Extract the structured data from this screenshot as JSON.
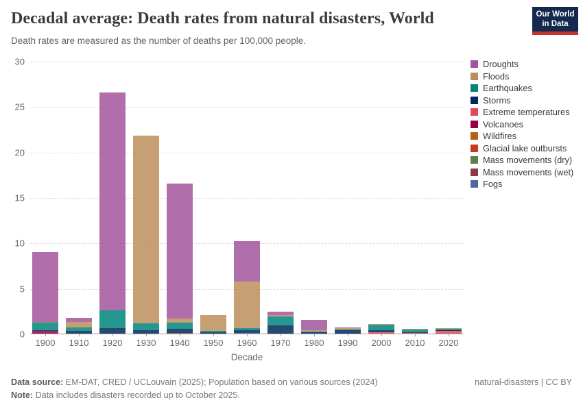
{
  "header": {
    "title": "Decadal average: Death rates from natural disasters, World",
    "subtitle": "Death rates are measured as the number of deaths per 100,000 people.",
    "logo": {
      "line1": "Our World",
      "line2": "in Data",
      "bg_color": "#15294f",
      "accent_color": "#c2362e"
    }
  },
  "chart_data": {
    "type": "bar",
    "stacked": true,
    "title": "Decadal average: Death rates from natural disasters, World",
    "xlabel": "Decade",
    "ylabel": "",
    "ylim": [
      0,
      30
    ],
    "yticks": [
      0,
      5,
      10,
      15,
      20,
      25,
      30
    ],
    "grid": "dashed-horizontal",
    "legend_position": "right",
    "bar_opacity": 0.85,
    "categories": [
      "1900",
      "1910",
      "1920",
      "1930",
      "1940",
      "1950",
      "1960",
      "1970",
      "1980",
      "1990",
      "2000",
      "2010",
      "2020"
    ],
    "series": [
      {
        "name": "Droughts",
        "color": "#a2559c",
        "values": [
          7.7,
          0.4,
          23.95,
          0.0,
          14.8,
          0.0,
          4.45,
          0.35,
          1.18,
          0.06,
          0.0,
          0.0,
          0.0
        ]
      },
      {
        "name": "Floods",
        "color": "#bc8e5a",
        "values": [
          0.05,
          0.62,
          0.0,
          20.65,
          0.45,
          1.8,
          5.15,
          0.18,
          0.1,
          0.15,
          0.06,
          0.05,
          0.06
        ]
      },
      {
        "name": "Earthquakes",
        "color": "#00847e",
        "values": [
          0.85,
          0.37,
          1.95,
          0.75,
          0.7,
          0.12,
          0.22,
          1.0,
          0.1,
          0.12,
          0.62,
          0.33,
          0.1
        ]
      },
      {
        "name": "Storms",
        "color": "#00295b",
        "values": [
          0.1,
          0.33,
          0.6,
          0.4,
          0.45,
          0.15,
          0.28,
          0.88,
          0.15,
          0.35,
          0.22,
          0.04,
          0.03
        ]
      },
      {
        "name": "Extreme temperatures",
        "color": "#e0485c",
        "values": [
          0.0,
          0.0,
          0.0,
          0.0,
          0.0,
          0.0,
          0.0,
          0.0,
          0.0,
          0.0,
          0.17,
          0.08,
          0.38
        ]
      },
      {
        "name": "Volcanoes",
        "color": "#970046",
        "values": [
          0.3,
          0.0,
          0.0,
          0.0,
          0.0,
          0.0,
          0.0,
          0.0,
          0.0,
          0.0,
          0.0,
          0.0,
          0.0
        ]
      },
      {
        "name": "Wildfires",
        "color": "#b16214",
        "values": [
          0.0,
          0.0,
          0.0,
          0.0,
          0.0,
          0.0,
          0.0,
          0.0,
          0.0,
          0.0,
          0.0,
          0.0,
          0.0
        ]
      },
      {
        "name": "Glacial lake outbursts",
        "color": "#c93a1d",
        "values": [
          0.0,
          0.0,
          0.0,
          0.0,
          0.0,
          0.0,
          0.0,
          0.0,
          0.0,
          0.0,
          0.0,
          0.0,
          0.0
        ]
      },
      {
        "name": "Mass movements (dry)",
        "color": "#578145",
        "values": [
          0.0,
          0.0,
          0.0,
          0.0,
          0.0,
          0.0,
          0.0,
          0.0,
          0.0,
          0.0,
          0.0,
          0.0,
          0.0
        ]
      },
      {
        "name": "Mass movements (wet)",
        "color": "#8b3a44",
        "values": [
          0.0,
          0.0,
          0.0,
          0.0,
          0.08,
          0.0,
          0.0,
          0.0,
          0.0,
          0.0,
          0.0,
          0.0,
          0.0
        ]
      },
      {
        "name": "Fogs",
        "color": "#4c6a9c",
        "values": [
          0.0,
          0.0,
          0.0,
          0.0,
          0.0,
          0.0,
          0.08,
          0.0,
          0.0,
          0.0,
          0.0,
          0.0,
          0.0
        ]
      }
    ],
    "totals": [
      9.0,
      1.72,
      26.5,
      21.8,
      16.48,
      2.07,
      10.18,
      2.41,
      1.53,
      0.68,
      1.07,
      0.5,
      0.57
    ]
  },
  "footer": {
    "source_label": "Data source:",
    "source_text": " EM-DAT, CRED / UCLouvain (2025); Population based on various sources (2024)",
    "note_label": "Note:",
    "note_text": " Data includes disasters recorded up to October 2025.",
    "right_text": "natural-disasters | CC BY"
  }
}
